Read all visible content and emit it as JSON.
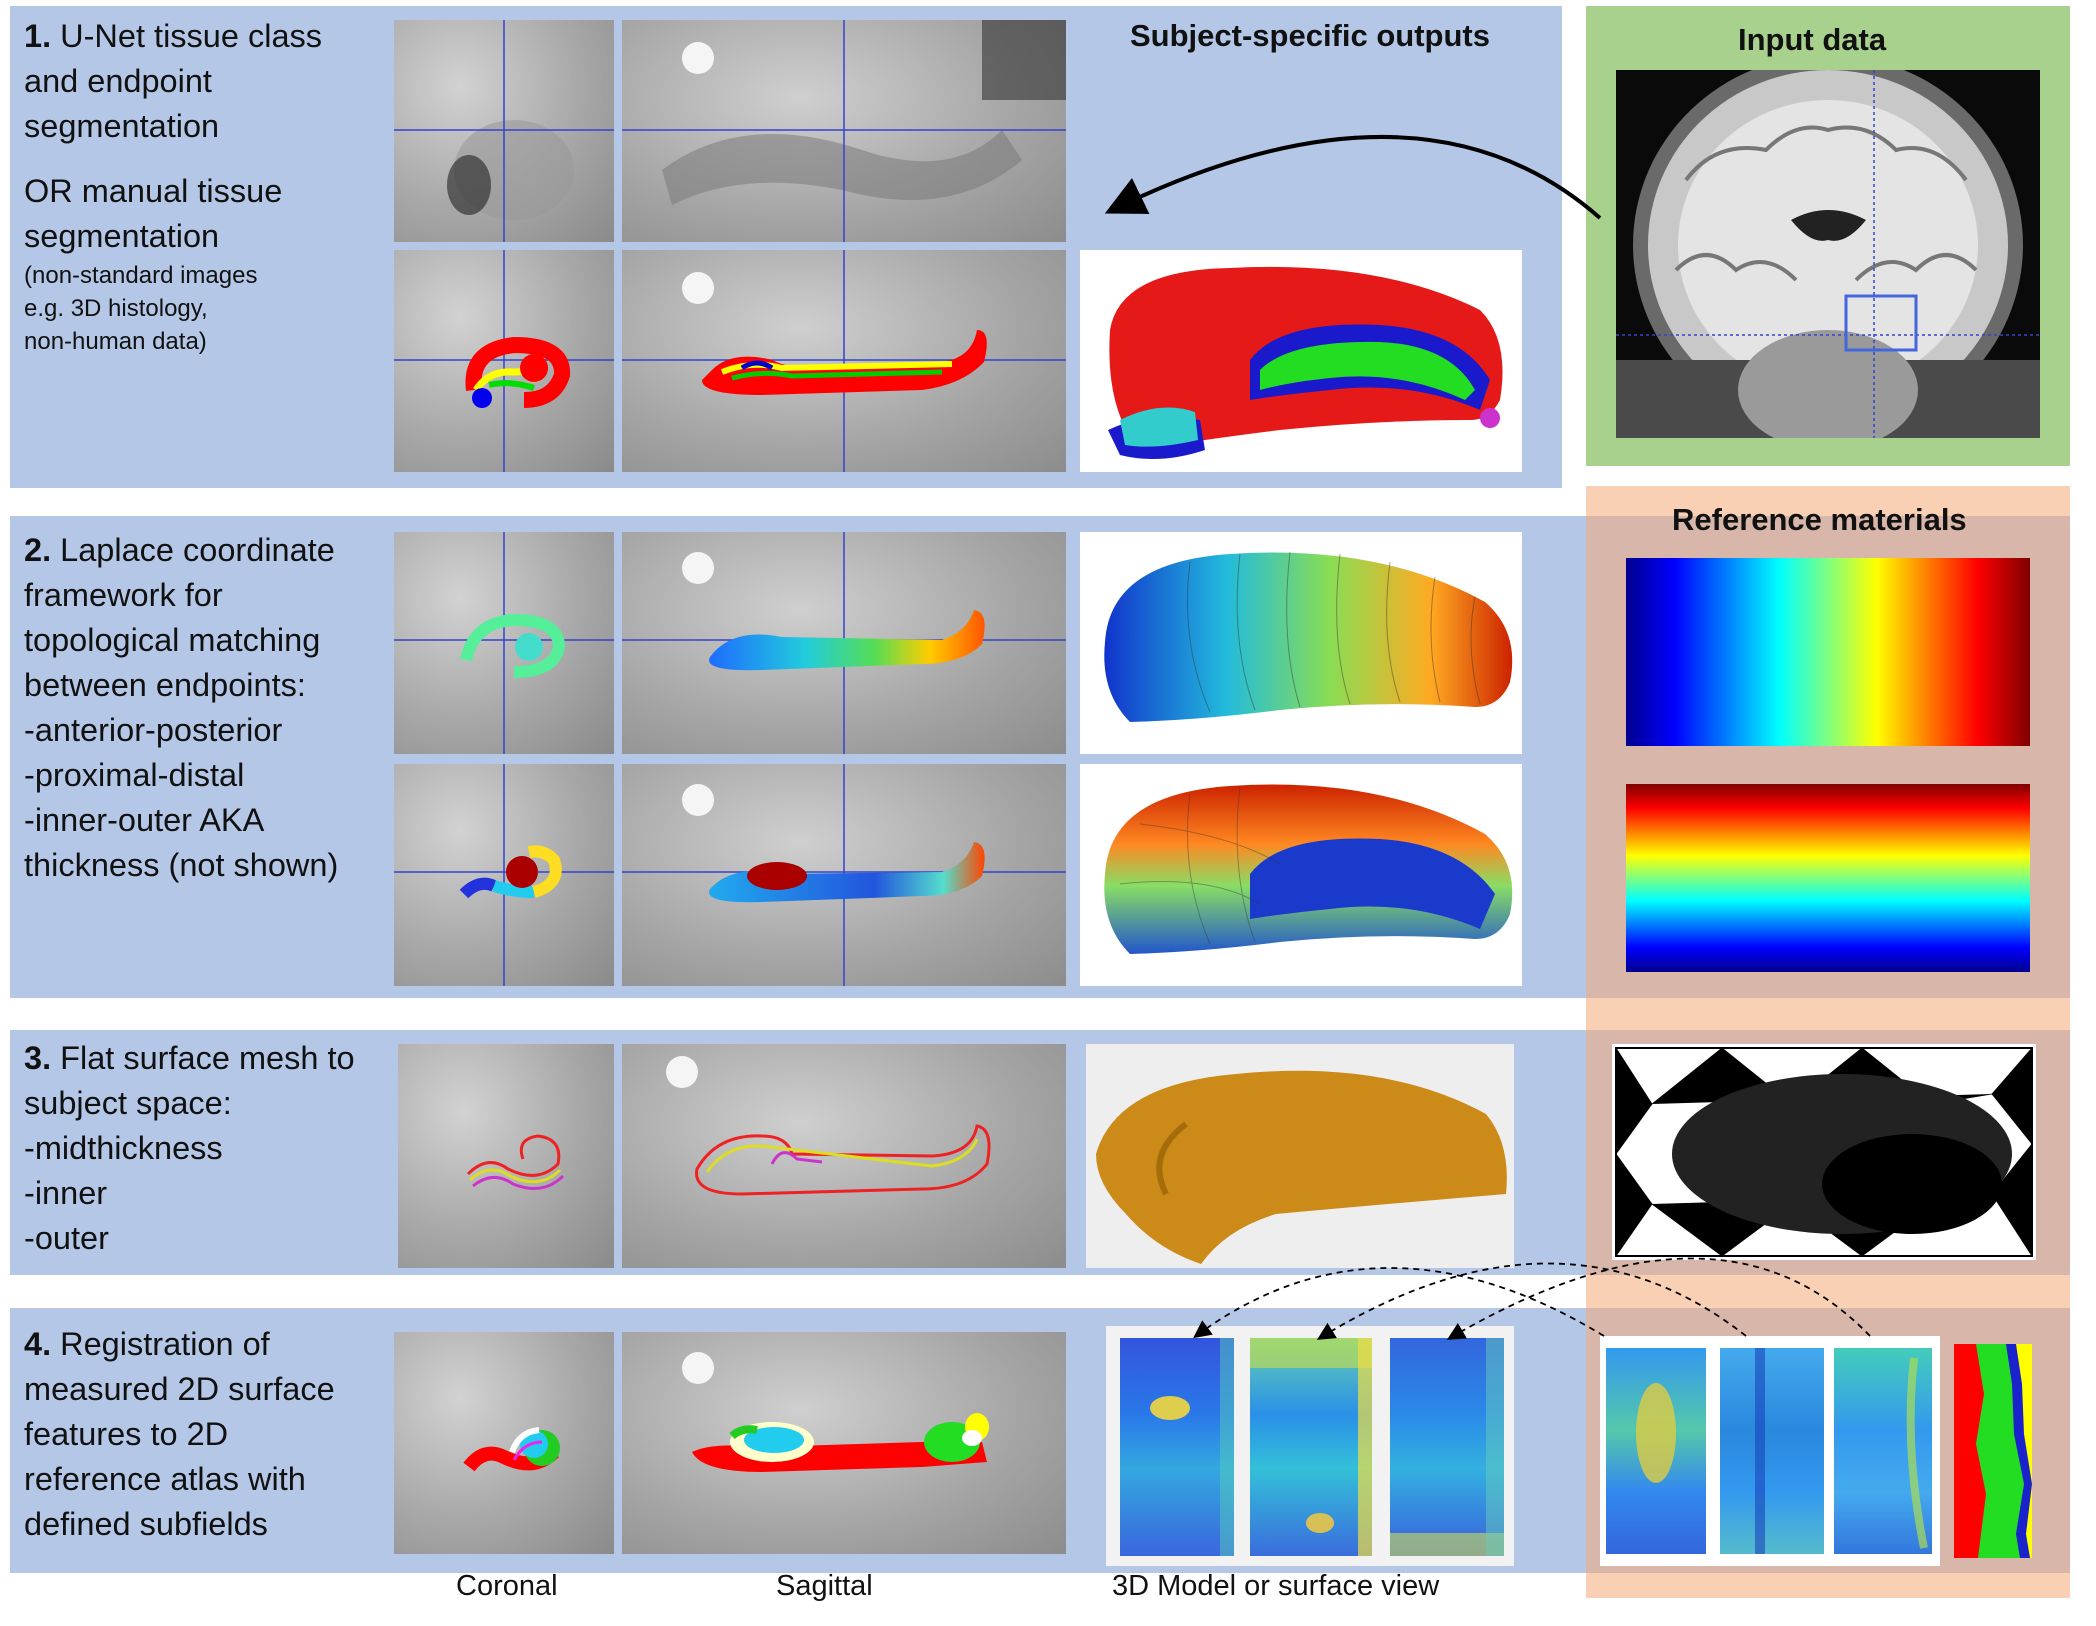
{
  "headings": {
    "subject_outputs": "Subject-specific outputs",
    "input_data": "Input data",
    "reference_materials": "Reference materials"
  },
  "steps": [
    {
      "number": "1.",
      "lines": [
        "U-Net tissue class",
        "and endpoint",
        "segmentation"
      ],
      "lines_b": [
        "OR manual tissue",
        "segmentation"
      ],
      "small": [
        "(non-standard images",
        "e.g. 3D histology,",
        "non-human data)"
      ]
    },
    {
      "number": "2.",
      "lines": [
        "Laplace coordinate",
        "framework for",
        "topological matching",
        "between endpoints:",
        "-anterior-posterior",
        "-proximal-distal",
        "-inner-outer AKA",
        "thickness (not shown)"
      ]
    },
    {
      "number": "3.",
      "lines": [
        "Flat surface mesh to",
        "subject space:",
        "-midthickness",
        "-inner",
        "-outer"
      ]
    },
    {
      "number": "4.",
      "lines": [
        "Registration of",
        "measured 2D surface",
        "features to 2D",
        "reference atlas with",
        "defined subfields"
      ]
    }
  ],
  "captions": {
    "coronal": "Coronal",
    "sagittal": "Sagittal",
    "model": "3D Model or surface view"
  },
  "colors": {
    "band": "#b4c7e7",
    "input_panel": "#a9d18e",
    "reference_panel": "#f8cbad"
  }
}
